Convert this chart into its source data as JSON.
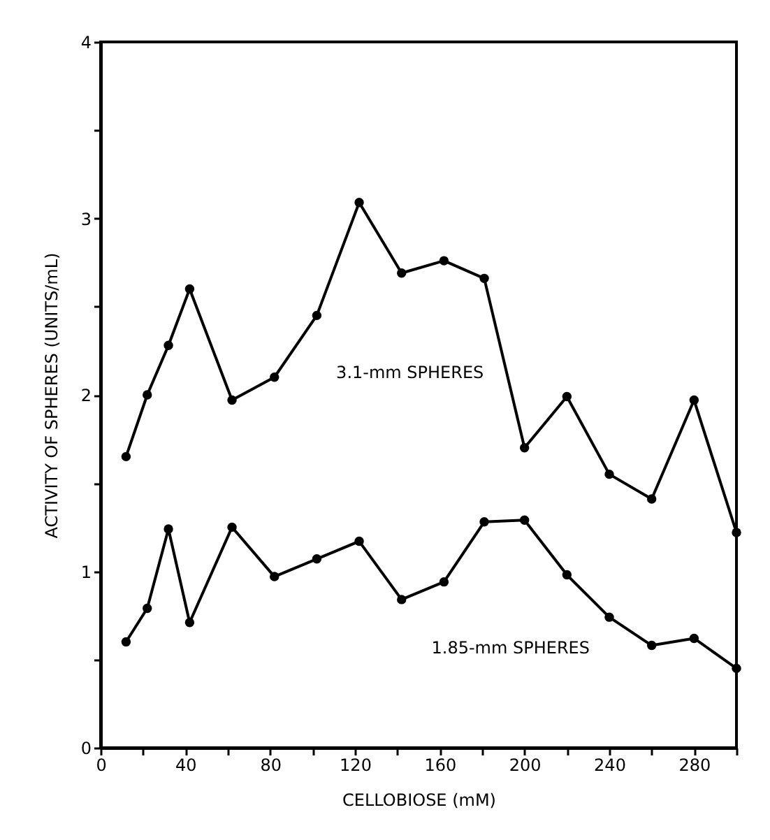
{
  "chart_data": {
    "type": "line",
    "xlabel": "CELLOBIOSE (mM)",
    "ylabel": "ACTIVITY OF SPHERES (UNITS/mL)",
    "xlim": [
      0,
      300
    ],
    "ylim": [
      0,
      4
    ],
    "xticks": [
      0,
      {
        "value": 20,
        "label": null
      },
      40,
      {
        "value": 60,
        "label": null
      },
      80,
      {
        "value": 100,
        "label": null
      },
      120,
      {
        "value": 140,
        "label": null
      },
      160,
      {
        "value": 180,
        "label": null
      },
      200,
      {
        "value": 220,
        "label": null
      },
      240,
      {
        "value": 260,
        "label": null
      },
      280,
      {
        "value": 300,
        "label": null
      }
    ],
    "yticks": [
      0,
      {
        "value": 0.5,
        "label": null
      },
      1,
      {
        "value": 1.5,
        "label": null
      },
      2,
      {
        "value": 2.5,
        "label": null
      },
      3,
      {
        "value": 3.5,
        "label": null
      },
      4
    ],
    "x": [
      12,
      22,
      32,
      42,
      62,
      82,
      102,
      122,
      142,
      162,
      181,
      200,
      220,
      240,
      260,
      280,
      300
    ],
    "series": [
      {
        "color": "#000000",
        "values": [
          1.65,
          2.0,
          2.28,
          2.6,
          1.97,
          2.1,
          2.45,
          3.09,
          2.69,
          2.76,
          2.66,
          1.7,
          1.99,
          1.55,
          1.41,
          1.97,
          1.22
        ]
      },
      {
        "color": "#000000",
        "values": [
          0.6,
          0.79,
          1.24,
          0.71,
          1.25,
          0.97,
          1.07,
          1.17,
          0.84,
          0.94,
          1.28,
          1.29,
          0.98,
          0.74,
          0.58,
          0.62,
          0.45
        ]
      }
    ],
    "annotations": [
      {
        "text": "3.1-mm SPHERES",
        "x": 190,
        "y": 2.3
      },
      {
        "text": "1.85-mm SPHERES",
        "x": 240,
        "y": 0.74
      }
    ],
    "marker": "circle",
    "line_style": "solid",
    "grid": false,
    "legend": false
  }
}
